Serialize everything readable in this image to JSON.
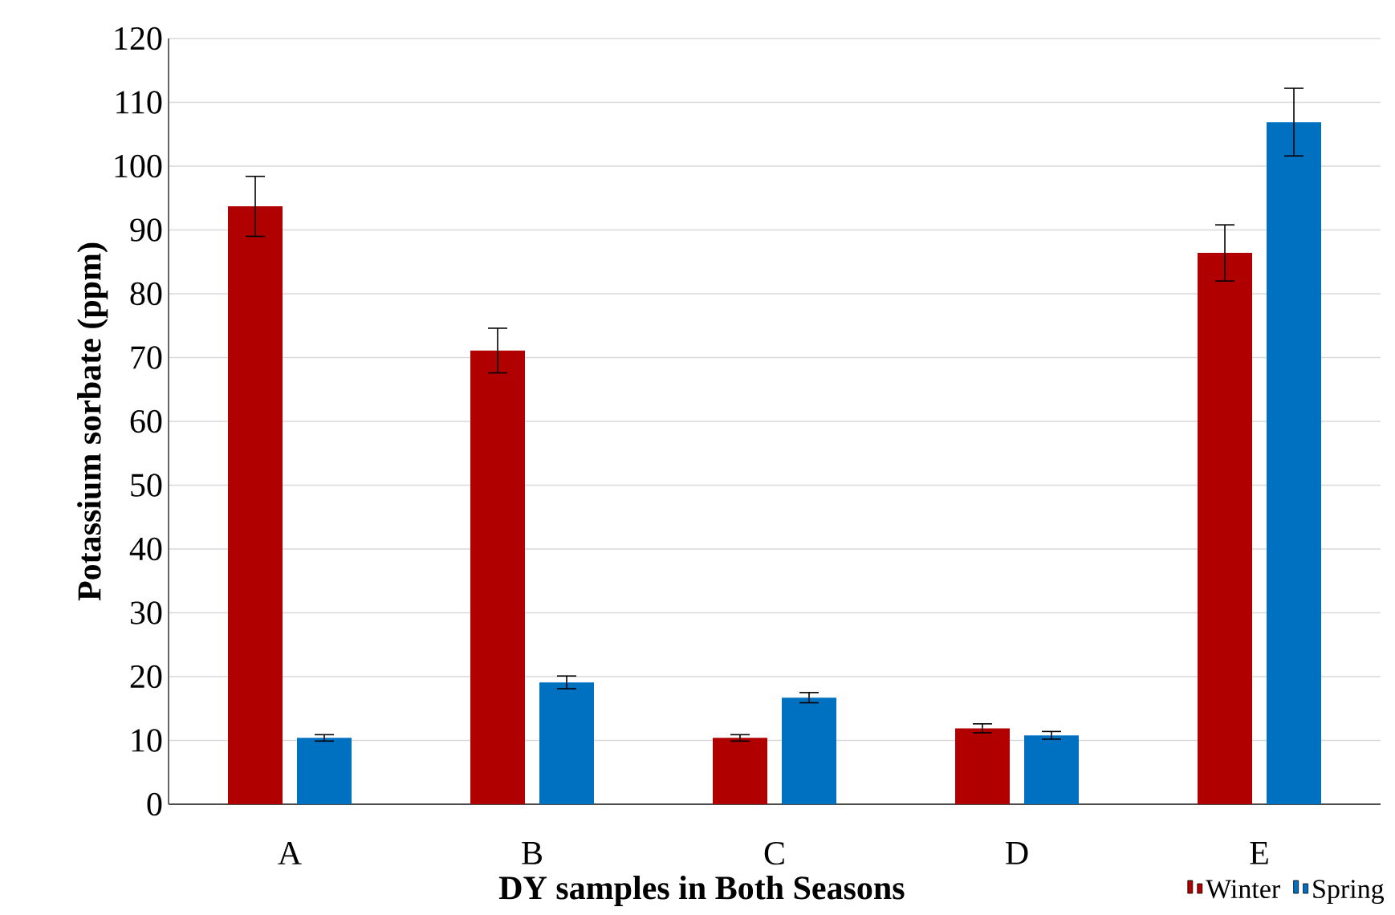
{
  "chart_data": {
    "type": "bar",
    "xlabel": "DY samples  in Both Seasons",
    "ylabel": "Potassium sorbate (ppm)",
    "categories": [
      "A",
      "B",
      "C",
      "D",
      "E"
    ],
    "series": [
      {
        "name": "Winter",
        "color": "#b00000",
        "values": [
          93.7,
          71.1,
          10.4,
          11.9,
          86.4
        ],
        "errors": [
          4.7,
          3.5,
          0.5,
          0.7,
          4.4
        ]
      },
      {
        "name": "Spring",
        "color": "#0070c0",
        "values": [
          10.4,
          19.1,
          16.7,
          10.8,
          106.9
        ],
        "errors": [
          0.5,
          1.0,
          0.8,
          0.6,
          5.3
        ]
      }
    ],
    "ylim": [
      0,
      120
    ],
    "yticks": [
      0,
      10,
      20,
      30,
      40,
      50,
      60,
      70,
      80,
      90,
      100,
      110,
      120
    ],
    "grid": "y",
    "legend": "bottom right"
  }
}
